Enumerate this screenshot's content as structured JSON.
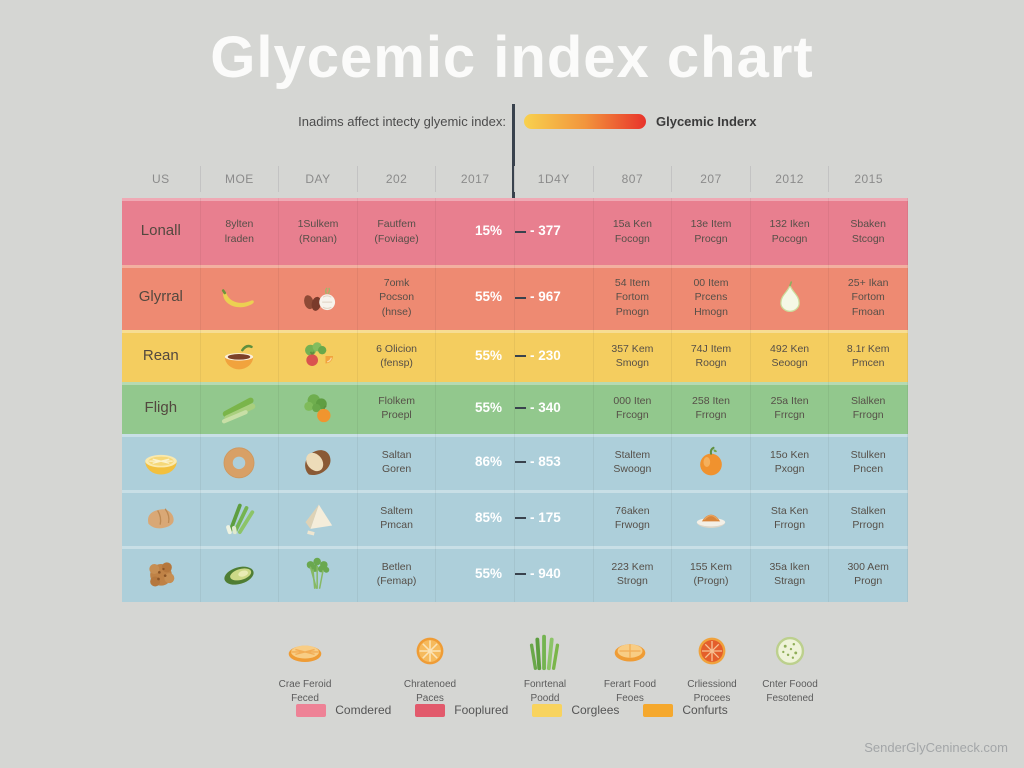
{
  "title": "Glycemic index chart",
  "subtitle": "Inadims affect intecty glyemic index:",
  "gradient_label": "Glycemic Inderx",
  "watermark": "SenderGlyCenineck.com",
  "colors": {
    "background": "#d5d6d3",
    "divider": "#39424d",
    "gradient": [
      "#f8d14e",
      "#f2953c",
      "#e8332b"
    ]
  },
  "chart_data": {
    "type": "table",
    "title": "Glycemic index chart",
    "columns": [
      "US",
      "MOE",
      "DAY",
      "202",
      "2017",
      "1D4Y",
      "807",
      "207",
      "2012",
      "2015"
    ],
    "rows": [
      {
        "color": "#e87f8f",
        "cells": [
          {
            "type": "label",
            "text": "Lonall"
          },
          {
            "type": "text",
            "lines": [
              "8ylten",
              "lraden"
            ]
          },
          {
            "type": "text",
            "lines": [
              "1Sulkem",
              "(Ronan)"
            ]
          },
          {
            "type": "text",
            "lines": [
              "Fautfem",
              "(Foviage)"
            ]
          },
          {
            "type": "pct",
            "text": "15%"
          },
          {
            "type": "val",
            "text": "- 377"
          },
          {
            "type": "text",
            "lines": [
              "15a Ken",
              "Focogn"
            ]
          },
          {
            "type": "text",
            "lines": [
              "13e Item",
              "Procgn"
            ]
          },
          {
            "type": "text",
            "lines": [
              "132 Iken",
              "Pocogn"
            ]
          },
          {
            "type": "text",
            "lines": [
              "Sbaken",
              "Stcogn"
            ]
          }
        ]
      },
      {
        "color": "#ee8a72",
        "cells": [
          {
            "type": "label",
            "text": "Glyrral"
          },
          {
            "type": "icon",
            "icon": "banana"
          },
          {
            "type": "icon",
            "icon": "dates-onion"
          },
          {
            "type": "text",
            "lines": [
              "7omk",
              "Pocson",
              "(hnse)"
            ]
          },
          {
            "type": "pct",
            "text": "55%"
          },
          {
            "type": "val",
            "text": "- 967"
          },
          {
            "type": "text",
            "lines": [
              "54 Item",
              "Fortom",
              "Pmogn"
            ]
          },
          {
            "type": "text",
            "lines": [
              "00 Item",
              "Prcens",
              "Hmogn"
            ]
          },
          {
            "type": "icon",
            "icon": "pear"
          },
          {
            "type": "text",
            "lines": [
              "25+ Ikan",
              "Fortom",
              "Fmoan"
            ]
          }
        ]
      },
      {
        "color": "#f4cd5f",
        "cells": [
          {
            "type": "label",
            "text": "Rean"
          },
          {
            "type": "icon",
            "icon": "soup-bowl"
          },
          {
            "type": "icon",
            "icon": "veggies"
          },
          {
            "type": "text",
            "lines": [
              "6 Olicion",
              "(fensp)"
            ]
          },
          {
            "type": "pct",
            "text": "55%"
          },
          {
            "type": "val",
            "text": "- 230"
          },
          {
            "type": "text",
            "lines": [
              "357 Kem",
              "Smogn"
            ]
          },
          {
            "type": "text",
            "lines": [
              "74J Item",
              "Roogn"
            ]
          },
          {
            "type": "text",
            "lines": [
              "492 Ken",
              "Seoogn"
            ]
          },
          {
            "type": "text",
            "lines": [
              "8.1r Kem",
              "Pmcen"
            ]
          }
        ]
      },
      {
        "color": "#92c88d",
        "cells": [
          {
            "type": "label",
            "text": "Fligh"
          },
          {
            "type": "icon",
            "icon": "celery"
          },
          {
            "type": "icon",
            "icon": "broccoli-orange"
          },
          {
            "type": "text",
            "lines": [
              "Flolkem",
              "Proepl"
            ]
          },
          {
            "type": "pct",
            "text": "55%"
          },
          {
            "type": "val",
            "text": "- 340"
          },
          {
            "type": "text",
            "lines": [
              "000 Iten",
              "Frcogn"
            ]
          },
          {
            "type": "text",
            "lines": [
              "258 Iten",
              "Frrogn"
            ]
          },
          {
            "type": "text",
            "lines": [
              "25a Iten",
              "Frrcgn"
            ]
          },
          {
            "type": "text",
            "lines": [
              "Slalken",
              "Frrogn"
            ]
          }
        ]
      },
      {
        "color": "#adcfda",
        "cells": [
          {
            "type": "icon",
            "icon": "lemon-half"
          },
          {
            "type": "icon",
            "icon": "bagel"
          },
          {
            "type": "icon",
            "icon": "coconut"
          },
          {
            "type": "text",
            "lines": [
              "Saltan",
              "Goren"
            ]
          },
          {
            "type": "pct",
            "text": "86%"
          },
          {
            "type": "val",
            "text": "- 853"
          },
          {
            "type": "text",
            "lines": [
              "Staltem",
              "Swoogn"
            ]
          },
          {
            "type": "icon",
            "icon": "apricot"
          },
          {
            "type": "text",
            "lines": [
              "15o Ken",
              "Pxogn"
            ]
          },
          {
            "type": "text",
            "lines": [
              "Stulken",
              "Pncen"
            ]
          }
        ]
      },
      {
        "color": "#adcfda",
        "cells": [
          {
            "type": "icon",
            "icon": "bread-roll"
          },
          {
            "type": "icon",
            "icon": "green-onions"
          },
          {
            "type": "icon",
            "icon": "tofu-wedge"
          },
          {
            "type": "text",
            "lines": [
              "Saltem",
              "Pmcan"
            ]
          },
          {
            "type": "pct",
            "text": "85%"
          },
          {
            "type": "val",
            "text": "- 175"
          },
          {
            "type": "text",
            "lines": [
              "76aken",
              "Frwogn"
            ]
          },
          {
            "type": "icon",
            "icon": "spice-bowl"
          },
          {
            "type": "text",
            "lines": [
              "Sta Ken",
              "Frrogn"
            ]
          },
          {
            "type": "text",
            "lines": [
              "Stalken",
              "Prrogn"
            ]
          }
        ]
      },
      {
        "color": "#adcfda",
        "cells": [
          {
            "type": "icon",
            "icon": "cookie"
          },
          {
            "type": "icon",
            "icon": "avocado"
          },
          {
            "type": "icon",
            "icon": "parsley"
          },
          {
            "type": "text",
            "lines": [
              "Betlen",
              "(Femap)"
            ]
          },
          {
            "type": "pct",
            "text": "55%"
          },
          {
            "type": "val",
            "text": "- 940"
          },
          {
            "type": "text",
            "lines": [
              "223 Kem",
              "Strogn"
            ]
          },
          {
            "type": "text",
            "lines": [
              "155 Kem",
              "(Progn)"
            ]
          },
          {
            "type": "text",
            "lines": [
              "35a Iken",
              "Stragn"
            ]
          },
          {
            "type": "text",
            "lines": [
              "300 Aem",
              "Progn"
            ]
          }
        ]
      }
    ]
  },
  "legend": {
    "items": [
      {
        "icon": "orange-slice-flat",
        "lines": [
          "Crae Feroid",
          "Feced"
        ]
      },
      {
        "icon": "orange-slice",
        "lines": [
          "Chratenoed",
          "Paces"
        ]
      },
      {
        "icon": "green-sprouts",
        "lines": [
          "Fonrtenal",
          "Poodd"
        ]
      },
      {
        "icon": "orange-wedge",
        "lines": [
          "Ferart Food",
          "Feoes"
        ]
      },
      {
        "icon": "blood-orange",
        "lines": [
          "Crliessiond",
          "Procees"
        ]
      },
      {
        "icon": "cucumber-slice",
        "lines": [
          "Cnter Foood",
          "Fesotened"
        ]
      }
    ]
  },
  "swatches": [
    {
      "color": "#ee8296",
      "label": "Comdered"
    },
    {
      "color": "#e25a6c",
      "label": "Fooplured"
    },
    {
      "color": "#f8d35e",
      "label": "Corglees"
    },
    {
      "color": "#f5a82d",
      "label": "Confurts"
    }
  ]
}
